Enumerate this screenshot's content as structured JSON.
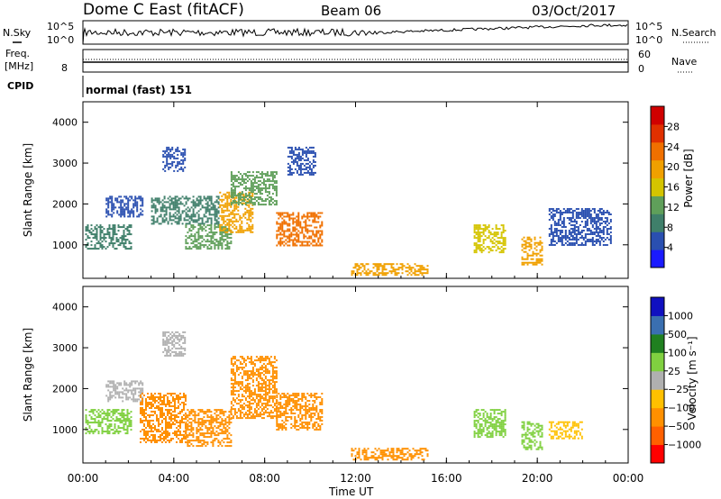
{
  "header": {
    "title": "Dome C East (fitACF)",
    "beam": "Beam 06",
    "date": "03/Oct/2017"
  },
  "nsky_panel": {
    "left_label": "N.Sky",
    "right_label": "N.Search",
    "left_ticks": [
      "10^5",
      "10^0"
    ],
    "right_ticks": [
      "10^5",
      "10^0"
    ]
  },
  "freq_panel": {
    "left_label_1": "Freq.",
    "left_label_2": "[MHz]",
    "right_label": "Nave",
    "left_ticks": [
      "8"
    ],
    "right_ticks": [
      "60",
      "0"
    ]
  },
  "cpid": {
    "label": "CPID",
    "value": "normal (fast) 151"
  },
  "colors": {
    "power_scale": [
      "#1a1aff",
      "#2a4fb0",
      "#3f7f6a",
      "#5f9f5a",
      "#d4c400",
      "#f0a000",
      "#f07000",
      "#e03000",
      "#d00000"
    ],
    "velocity_scale": [
      "#ff0000",
      "#ff6000",
      "#ff9000",
      "#ffc000",
      "#b0b0b0",
      "#80d040",
      "#208020",
      "#3a6fb0",
      "#1010c0"
    ]
  },
  "chart_data": [
    {
      "type": "heatmap",
      "quantity": "Power",
      "ylabel": "Slant Range [km]",
      "yticks": [
        1000,
        2000,
        3000,
        4000
      ],
      "ylim": [
        180,
        4500
      ],
      "colorbar_label": "Power [dB]",
      "colorbar_ticks": [
        4,
        8,
        12,
        16,
        20,
        24,
        28
      ],
      "colorbar_range": [
        0,
        32
      ],
      "regions": [
        {
          "t0": 0.1,
          "t1": 2.1,
          "r0": 900,
          "r1": 1500,
          "level": 10
        },
        {
          "t0": 1.0,
          "t1": 2.6,
          "r0": 1700,
          "r1": 2200,
          "level": 7
        },
        {
          "t0": 3.0,
          "t1": 6.0,
          "r0": 1500,
          "r1": 2200,
          "level": 9
        },
        {
          "t0": 3.5,
          "t1": 4.5,
          "r0": 2800,
          "r1": 3400,
          "level": 6
        },
        {
          "t0": 4.5,
          "t1": 6.5,
          "r0": 900,
          "r1": 1500,
          "level": 11
        },
        {
          "t0": 6.0,
          "t1": 7.5,
          "r0": 1300,
          "r1": 2300,
          "level": 20
        },
        {
          "t0": 6.5,
          "t1": 8.5,
          "r0": 2000,
          "r1": 2800,
          "level": 14
        },
        {
          "t0": 8.5,
          "t1": 10.5,
          "r0": 1000,
          "r1": 1800,
          "level": 22
        },
        {
          "t0": 9.0,
          "t1": 10.2,
          "r0": 2700,
          "r1": 3400,
          "level": 6
        },
        {
          "t0": 11.8,
          "t1": 15.2,
          "r0": 250,
          "r1": 550,
          "level": 18
        },
        {
          "t0": 17.2,
          "t1": 18.6,
          "r0": 800,
          "r1": 1500,
          "level": 17
        },
        {
          "t0": 19.3,
          "t1": 20.2,
          "r0": 500,
          "r1": 1200,
          "level": 21
        },
        {
          "t0": 20.5,
          "t1": 23.2,
          "r0": 1000,
          "r1": 1900,
          "level": 5
        }
      ]
    },
    {
      "type": "heatmap",
      "quantity": "Velocity",
      "ylabel": "Slant Range [km]",
      "xlabel": "Time UT",
      "yticks": [
        1000,
        2000,
        3000,
        4000
      ],
      "ylim": [
        180,
        4500
      ],
      "colorbar_label": "Velocity [m s⁻¹]",
      "colorbar_ticks": [
        "1000",
        "500",
        "100",
        "25",
        "−25",
        "−100",
        "−500",
        "−1000"
      ],
      "regions": [
        {
          "t0": 0.1,
          "t1": 2.1,
          "r0": 900,
          "r1": 1500,
          "level": "100"
        },
        {
          "t0": 1.0,
          "t1": 2.6,
          "r0": 1700,
          "r1": 2200,
          "level": "25"
        },
        {
          "t0": 2.5,
          "t1": 4.5,
          "r0": 700,
          "r1": 1900,
          "level": "−100"
        },
        {
          "t0": 3.5,
          "t1": 4.5,
          "r0": 2800,
          "r1": 3400,
          "level": "25"
        },
        {
          "t0": 4.5,
          "t1": 6.5,
          "r0": 600,
          "r1": 1500,
          "level": "−100"
        },
        {
          "t0": 6.5,
          "t1": 8.5,
          "r0": 1300,
          "r1": 2800,
          "level": "−100"
        },
        {
          "t0": 8.5,
          "t1": 10.5,
          "r0": 1000,
          "r1": 1900,
          "level": "−100"
        },
        {
          "t0": 11.8,
          "t1": 15.2,
          "r0": 250,
          "r1": 550,
          "level": "−100"
        },
        {
          "t0": 17.2,
          "t1": 18.6,
          "r0": 800,
          "r1": 1500,
          "level": "100"
        },
        {
          "t0": 19.3,
          "t1": 20.2,
          "r0": 500,
          "r1": 1200,
          "level": "100"
        },
        {
          "t0": 20.5,
          "t1": 22.0,
          "r0": 800,
          "r1": 1200,
          "level": "−25"
        }
      ]
    }
  ],
  "x_axis": {
    "label": "Time UT",
    "ticks": [
      "00:00",
      "04:00",
      "08:00",
      "12:00",
      "16:00",
      "20:00",
      "00:00"
    ],
    "range_hours": [
      0,
      24
    ]
  }
}
